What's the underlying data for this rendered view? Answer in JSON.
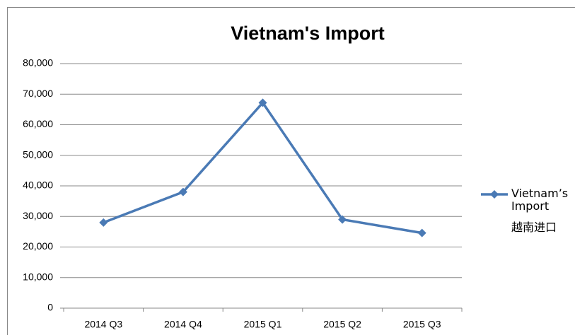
{
  "chart_data": {
    "type": "line",
    "title": "Vietnam's Import",
    "categories": [
      "2014 Q3",
      "2014 Q4",
      "2015 Q1",
      "2015 Q2",
      "2015 Q3"
    ],
    "series": [
      {
        "name": "Vietnam’s Import",
        "color": "#4a7ab5",
        "values": [
          28000,
          38000,
          67200,
          29000,
          24600
        ]
      }
    ],
    "legend_note": "越南进口",
    "legend": "right",
    "ylim": [
      0,
      80000
    ],
    "yticks": [
      0,
      {
        "value": 10000,
        "label": "10,000"
      },
      {
        "value": 20000,
        "label": "20,000"
      },
      {
        "value": 30000,
        "label": "30,000"
      },
      {
        "value": 40000,
        "label": "40,000"
      },
      {
        "value": 50000,
        "label": "50,000"
      },
      {
        "value": 60000,
        "label": "60,000"
      },
      {
        "value": 70000,
        "label": "70,000"
      },
      {
        "value": 80000,
        "label": "80,000"
      }
    ],
    "grid": true
  }
}
